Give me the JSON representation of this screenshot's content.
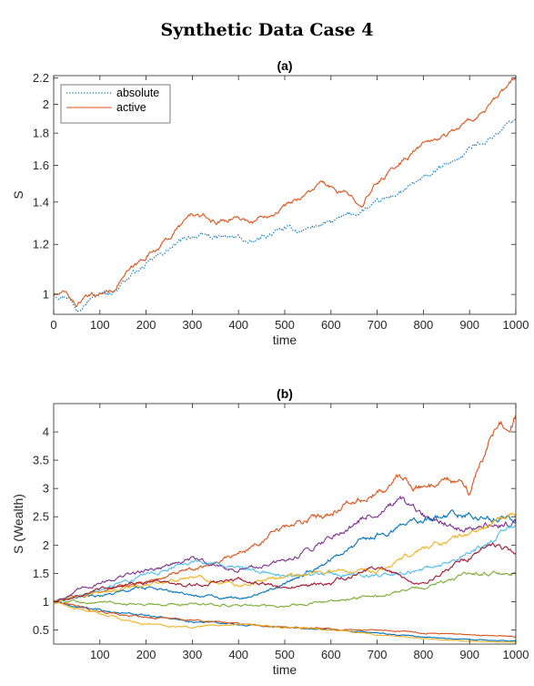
{
  "figure": {
    "title": "Synthetic Data Case 4"
  },
  "chart_data": [
    {
      "type": "line",
      "title": "(a)",
      "xlabel": "time",
      "ylabel": "S",
      "xlim": [
        0,
        1000
      ],
      "ylim": [
        0.93,
        2.22
      ],
      "yscale": "log",
      "xticks": [
        0,
        100,
        200,
        300,
        400,
        500,
        600,
        700,
        800,
        900,
        1000
      ],
      "yticks": [
        1,
        1.2,
        1.4,
        1.6,
        1.8,
        2,
        2.2
      ],
      "grid": false,
      "legend": "top-left",
      "series": [
        {
          "name": "absolute",
          "color": "#0072BD",
          "style": "dotted",
          "x": [
            0,
            30,
            50,
            60,
            80,
            100,
            130,
            150,
            180,
            200,
            250,
            300,
            350,
            400,
            430,
            450,
            500,
            530,
            560,
            600,
            650,
            700,
            750,
            800,
            850,
            880,
            900,
            950,
            1000
          ],
          "y": [
            1.0,
            1.0,
            0.95,
            0.97,
            0.99,
            1.0,
            1.01,
            1.05,
            1.09,
            1.11,
            1.18,
            1.24,
            1.23,
            1.23,
            1.2,
            1.23,
            1.27,
            1.26,
            1.28,
            1.3,
            1.34,
            1.39,
            1.45,
            1.52,
            1.6,
            1.65,
            1.7,
            1.78,
            1.9
          ]
        },
        {
          "name": "active",
          "color": "#D95319",
          "style": "solid",
          "x": [
            0,
            30,
            50,
            60,
            80,
            100,
            130,
            150,
            180,
            200,
            250,
            300,
            330,
            350,
            400,
            430,
            450,
            500,
            550,
            580,
            600,
            650,
            670,
            700,
            750,
            800,
            850,
            900,
            950,
            1000
          ],
          "y": [
            1.0,
            1.0,
            0.96,
            0.98,
            0.99,
            1.0,
            1.02,
            1.07,
            1.11,
            1.15,
            1.23,
            1.34,
            1.32,
            1.3,
            1.33,
            1.3,
            1.33,
            1.38,
            1.45,
            1.5,
            1.47,
            1.42,
            1.4,
            1.5,
            1.62,
            1.73,
            1.79,
            1.88,
            2.0,
            2.2
          ]
        }
      ]
    },
    {
      "type": "line",
      "title": "(b)",
      "xlabel": "time",
      "ylabel": "S (Wealth)",
      "xlim": [
        0,
        1000
      ],
      "ylim": [
        0.25,
        4.5
      ],
      "xticks": [
        100,
        200,
        300,
        400,
        500,
        600,
        700,
        800,
        900,
        1000
      ],
      "yticks": [
        0.5,
        1,
        1.5,
        2,
        2.5,
        3,
        3.5,
        4
      ],
      "grid": false,
      "series": [
        {
          "color": "#D95319",
          "x": [
            0,
            100,
            200,
            300,
            400,
            500,
            600,
            700,
            750,
            800,
            850,
            900,
            930,
            960,
            1000
          ],
          "y": [
            1.0,
            1.18,
            1.35,
            1.55,
            1.85,
            2.3,
            2.6,
            2.9,
            3.2,
            3.0,
            3.2,
            2.95,
            3.6,
            4.1,
            4.3
          ]
        },
        {
          "color": "#7E2F8E",
          "x": [
            0,
            100,
            200,
            300,
            400,
            500,
            600,
            700,
            750,
            800,
            900,
            1000
          ],
          "y": [
            1.0,
            1.35,
            1.55,
            1.75,
            1.55,
            1.7,
            2.15,
            2.6,
            2.75,
            2.5,
            2.3,
            2.4
          ]
        },
        {
          "color": "#0072BD",
          "x": [
            0,
            100,
            200,
            300,
            400,
            500,
            600,
            700,
            800,
            900,
            1000
          ],
          "y": [
            1.0,
            1.1,
            1.25,
            1.1,
            1.05,
            1.3,
            1.75,
            2.2,
            2.45,
            2.55,
            2.4
          ]
        },
        {
          "color": "#4DBEEE",
          "x": [
            0,
            100,
            200,
            300,
            400,
            500,
            600,
            700,
            800,
            900,
            1000
          ],
          "y": [
            1.0,
            1.2,
            1.5,
            1.7,
            1.6,
            1.45,
            1.5,
            1.45,
            1.55,
            1.85,
            2.35
          ]
        },
        {
          "color": "#EDB120",
          "x": [
            0,
            100,
            200,
            300,
            400,
            500,
            600,
            700,
            800,
            900,
            1000
          ],
          "y": [
            1.0,
            1.15,
            1.3,
            1.45,
            1.3,
            1.45,
            1.55,
            1.5,
            1.95,
            2.2,
            2.55
          ]
        },
        {
          "color": "#A2142F",
          "x": [
            0,
            100,
            200,
            300,
            400,
            500,
            600,
            700,
            800,
            900,
            950,
            1000
          ],
          "y": [
            1.0,
            1.2,
            1.35,
            1.3,
            1.4,
            1.25,
            1.35,
            1.6,
            1.3,
            1.8,
            2.0,
            1.85
          ]
        },
        {
          "color": "#77AC30",
          "x": [
            0,
            100,
            200,
            300,
            400,
            500,
            600,
            700,
            800,
            900,
            1000
          ],
          "y": [
            1.0,
            1.0,
            0.95,
            0.95,
            0.95,
            0.9,
            1.0,
            1.1,
            1.25,
            1.5,
            1.5
          ]
        },
        {
          "color": "#0072BD",
          "x": [
            0,
            100,
            200,
            300,
            400,
            500,
            600,
            700,
            800,
            900,
            1000
          ],
          "y": [
            1.0,
            0.85,
            0.75,
            0.65,
            0.6,
            0.55,
            0.5,
            0.45,
            0.38,
            0.33,
            0.3
          ]
        },
        {
          "color": "#D95319",
          "x": [
            0,
            100,
            200,
            300,
            400,
            500,
            600,
            700,
            800,
            900,
            1000
          ],
          "y": [
            1.0,
            0.82,
            0.72,
            0.68,
            0.6,
            0.55,
            0.52,
            0.5,
            0.45,
            0.42,
            0.38
          ]
        },
        {
          "color": "#EDB120",
          "x": [
            0,
            100,
            200,
            300,
            400,
            500,
            600,
            700,
            800,
            900,
            1000
          ],
          "y": [
            1.0,
            0.78,
            0.6,
            0.55,
            0.6,
            0.55,
            0.5,
            0.42,
            0.35,
            0.3,
            0.28
          ]
        }
      ]
    }
  ]
}
